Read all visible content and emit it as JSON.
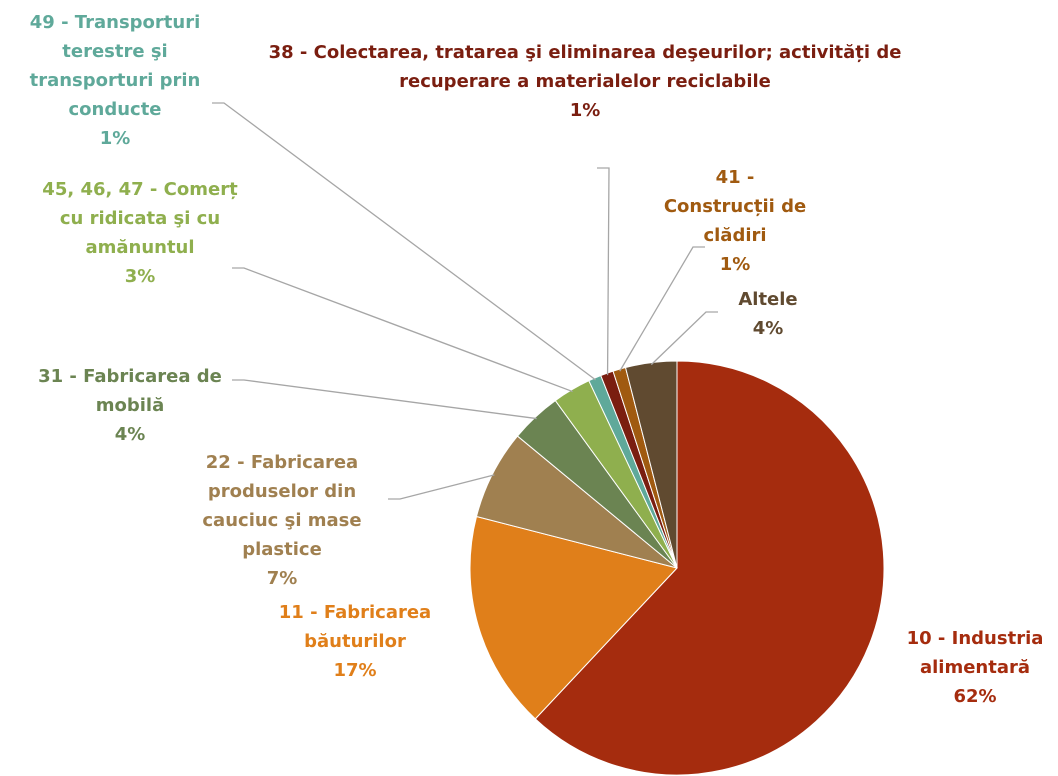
{
  "chart_data": {
    "type": "pie",
    "categories": [
      "10 - Industria alimentară",
      "11 - Fabricarea băuturilor",
      "22 - Fabricarea produselor din cauciuc şi mase plastice",
      "31 - Fabricarea de mobilă",
      "45, 46, 47 - Comerț cu ridicata şi cu amănuntul",
      "49 - Transporturi terestre şi transporturi prin conducte",
      "38 - Colectarea, tratarea şi eliminarea deşeurilor; activități de recuperare a materialelor reciclabile",
      "41 - Construcții de clădiri",
      "Altele"
    ],
    "values": [
      62,
      17,
      7,
      4,
      3,
      1,
      1,
      1,
      4
    ],
    "value_labels": [
      "62%",
      "17%",
      "7%",
      "4%",
      "3%",
      "1%",
      "1%",
      "1%",
      "4%"
    ],
    "colors": [
      "#a52c0e",
      "#e07f1a",
      "#a08050",
      "#6b8452",
      "#8faf4e",
      "#5fa99a",
      "#7a1e10",
      "#a05a10",
      "#604a30"
    ]
  }
}
